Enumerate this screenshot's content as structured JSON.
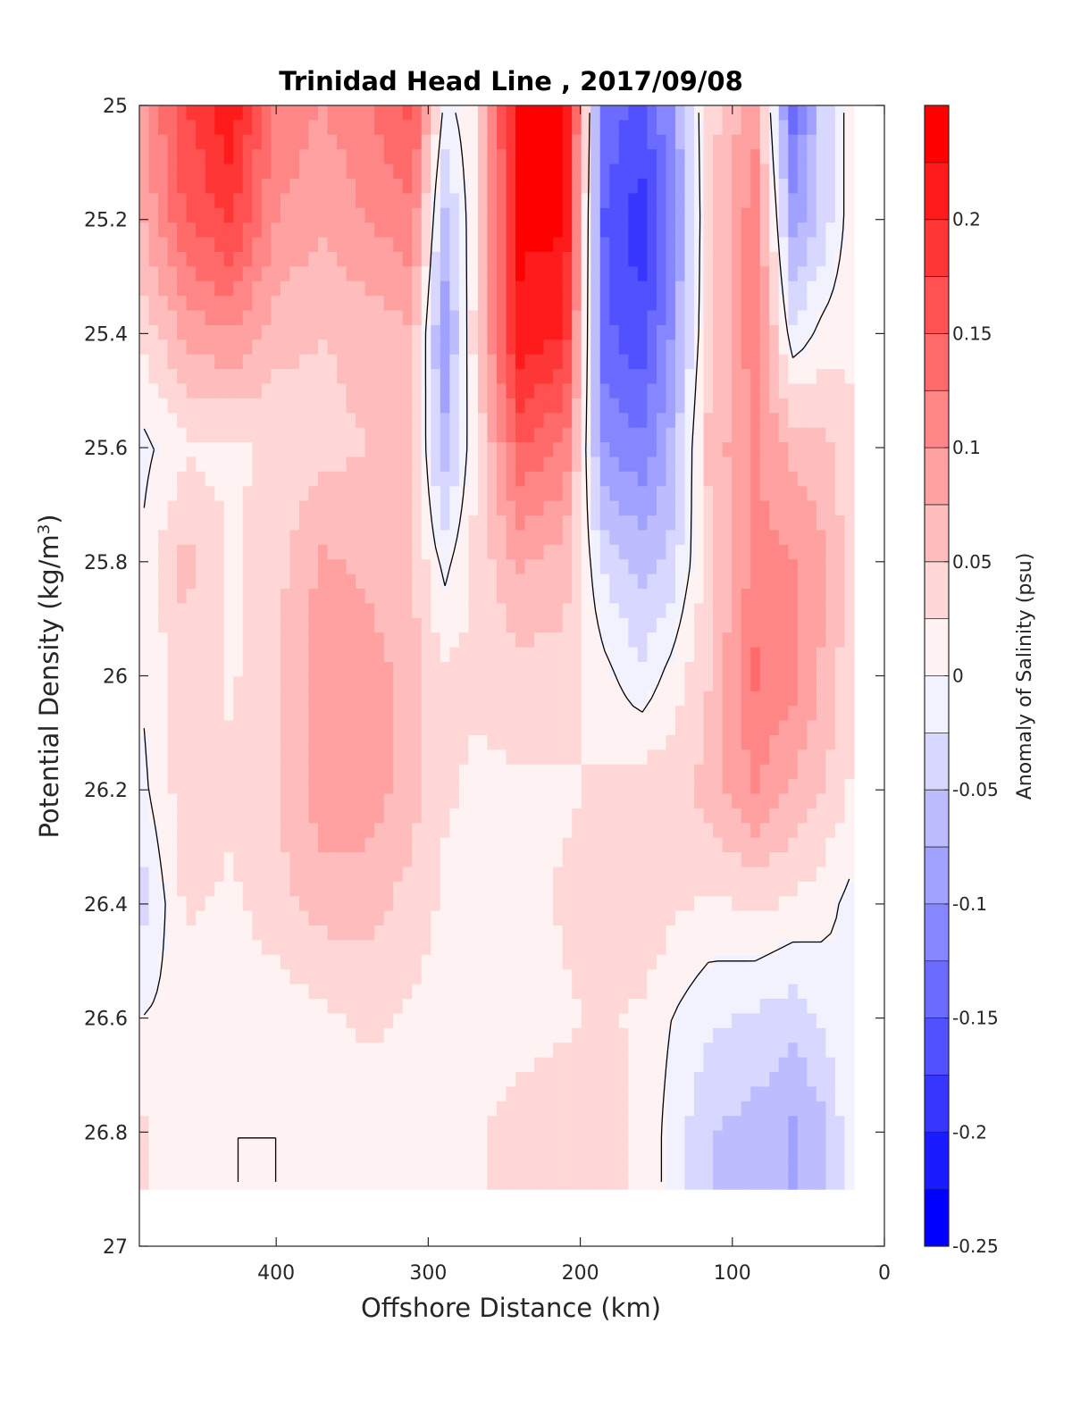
{
  "chart_data": {
    "type": "heatmap",
    "title": "Trinidad Head Line , 2017/09/08",
    "xlabel": "Offshore Distance (km)",
    "ylabel_main": "Potential Density (kg/m",
    "ylabel_sup": "3",
    "ylabel_close": ")",
    "colorbar_label": "Anomaly of Salinity (psu)",
    "x_reversed": true,
    "y_reversed": true,
    "xlim": [
      0,
      490
    ],
    "ylim": [
      25,
      27
    ],
    "x_ticks": [
      400,
      300,
      200,
      100,
      0
    ],
    "x_tick_labels": [
      "400",
      "300",
      "200",
      "100",
      "0"
    ],
    "y_ticks": [
      25,
      25.2,
      25.4,
      25.6,
      25.8,
      26,
      26.2,
      26.4,
      26.6,
      26.8,
      27
    ],
    "y_tick_labels": [
      "25",
      "25.2",
      "25.4",
      "25.6",
      "25.8",
      "26",
      "26.2",
      "26.4",
      "26.6",
      "26.8",
      "27"
    ],
    "data_y_max": 26.9,
    "colorbar": {
      "clim": [
        -0.25,
        0.25
      ],
      "levels": 20,
      "ticks": [
        0.2,
        0.15,
        0.1,
        0.05,
        0,
        -0.05,
        -0.1,
        -0.15,
        -0.2,
        -0.25
      ],
      "tick_labels": [
        "0.2",
        "0.15",
        "0.1",
        "0.05",
        "0",
        "-0.05",
        "-0.1",
        "-0.15",
        "-0.2",
        "-0.25"
      ]
    },
    "x_km": [
      490,
      460,
      430,
      400,
      370,
      340,
      310,
      290,
      270,
      240,
      210,
      185,
      160,
      140,
      115,
      85,
      60,
      40,
      20
    ],
    "y_density": [
      25.0,
      25.2,
      25.4,
      25.6,
      25.8,
      26.0,
      26.2,
      26.4,
      26.6,
      26.8,
      26.9
    ],
    "anomaly_psu": [
      [
        0.09,
        0.17,
        0.22,
        0.12,
        0.1,
        0.12,
        0.16,
        -0.01,
        0.02,
        0.24,
        0.24,
        -0.13,
        -0.16,
        -0.1,
        0.04,
        0.09,
        -0.14,
        -0.04,
        0.02
      ],
      [
        0.07,
        0.15,
        0.18,
        0.1,
        0.08,
        0.1,
        0.12,
        -0.06,
        0.02,
        0.23,
        0.23,
        -0.15,
        -0.19,
        -0.12,
        0.04,
        0.12,
        -0.09,
        -0.04,
        0.02
      ],
      [
        0.03,
        0.08,
        0.1,
        0.06,
        0.05,
        0.06,
        0.07,
        -0.1,
        0.03,
        0.22,
        0.2,
        -0.14,
        -0.17,
        -0.1,
        0.04,
        0.12,
        -0.02,
        0.01,
        0.02
      ],
      [
        -0.01,
        0.02,
        0.02,
        0.03,
        0.04,
        0.05,
        0.05,
        -0.07,
        0.02,
        0.15,
        0.12,
        -0.1,
        -0.12,
        -0.07,
        0.06,
        0.1,
        0.07,
        0.06,
        0.03
      ],
      [
        0.0,
        0.06,
        0.02,
        0.04,
        0.08,
        0.07,
        0.05,
        -0.01,
        0.03,
        0.08,
        0.06,
        -0.03,
        -0.06,
        -0.04,
        0.04,
        0.11,
        0.1,
        0.08,
        0.03
      ],
      [
        0.0,
        0.04,
        0.02,
        0.05,
        0.09,
        0.09,
        0.06,
        0.03,
        0.03,
        0.04,
        0.04,
        0.01,
        -0.02,
        0.01,
        0.05,
        0.13,
        0.11,
        0.07,
        0.03
      ],
      [
        -0.01,
        0.04,
        0.03,
        0.05,
        0.09,
        0.09,
        0.06,
        0.03,
        0.02,
        0.02,
        0.02,
        0.03,
        0.04,
        0.04,
        0.06,
        0.1,
        0.07,
        0.05,
        0.02
      ],
      [
        -0.04,
        0.03,
        0.02,
        0.04,
        0.06,
        0.06,
        0.04,
        0.02,
        0.02,
        0.01,
        0.03,
        0.04,
        0.05,
        0.03,
        0.02,
        0.03,
        0.02,
        0.01,
        -0.01
      ],
      [
        0.0,
        0.01,
        0.0,
        0.01,
        0.02,
        0.03,
        0.02,
        0.01,
        0.01,
        0.01,
        0.02,
        0.03,
        0.02,
        0.0,
        -0.02,
        -0.03,
        -0.04,
        -0.02,
        0.0
      ],
      [
        0.03,
        0.01,
        0.0,
        0.0,
        0.01,
        0.01,
        0.02,
        0.02,
        0.02,
        0.04,
        0.05,
        0.04,
        0.02,
        -0.01,
        -0.05,
        -0.06,
        -0.08,
        -0.06,
        0.0
      ],
      [
        0.03,
        0.01,
        0.0,
        0.0,
        0.01,
        0.01,
        0.02,
        0.02,
        0.02,
        0.04,
        0.05,
        0.04,
        0.02,
        -0.01,
        -0.05,
        -0.06,
        -0.08,
        -0.06,
        0.0
      ]
    ],
    "contour_levels": [
      0
    ],
    "grid": false,
    "legend": "colorbar-right"
  }
}
